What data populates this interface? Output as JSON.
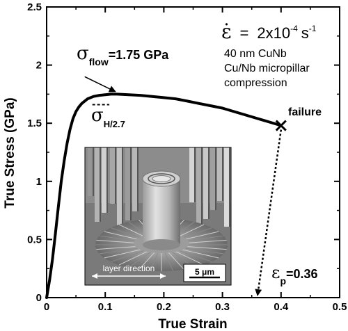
{
  "chart_data": {
    "type": "line",
    "xlabel": "True Strain",
    "ylabel": "True Stress (GPa)",
    "xlim": [
      0,
      0.5
    ],
    "ylim": [
      0,
      2.5
    ],
    "x_ticks": [
      "0",
      "0.1",
      "0.2",
      "0.3",
      "0.4",
      "0.5"
    ],
    "y_ticks": [
      "0",
      "0.5",
      "1",
      "1.5",
      "2",
      "2.5"
    ],
    "grid": false,
    "series": [
      {
        "x": [
          0,
          0.005,
          0.01,
          0.015,
          0.02,
          0.025,
          0.03,
          0.035,
          0.04,
          0.045,
          0.05,
          0.055,
          0.06,
          0.065,
          0.07,
          0.08,
          0.09,
          0.1,
          0.11,
          0.12,
          0.14,
          0.16,
          0.18,
          0.2,
          0.22,
          0.24,
          0.26,
          0.28,
          0.3,
          0.32,
          0.34,
          0.36,
          0.38,
          0.4
        ],
        "values": [
          0,
          0.15,
          0.33,
          0.55,
          0.78,
          1.0,
          1.18,
          1.33,
          1.45,
          1.54,
          1.6,
          1.64,
          1.67,
          1.69,
          1.71,
          1.73,
          1.74,
          1.745,
          1.75,
          1.75,
          1.745,
          1.74,
          1.73,
          1.72,
          1.71,
          1.69,
          1.67,
          1.65,
          1.63,
          1.6,
          1.57,
          1.54,
          1.51,
          1.48
        ]
      }
    ],
    "annotations": {
      "flow_symbol": "σ",
      "flow_sub": "flow",
      "flow_value": "=1.75 GPa",
      "flow_point": {
        "x": 0.12,
        "y": 1.75
      },
      "hardness_symbol": "σ",
      "hardness_sub": "H/2.7",
      "hardness_level": 1.66,
      "rate_symbol": "ε̇",
      "rate_eq": "=",
      "rate_base": "2x10",
      "rate_exp": "-4",
      "rate_unit": "s",
      "rate_unit_exp": "-1",
      "material_line1": "40 nm CuNb",
      "material_line2": "Cu/Nb micropillar",
      "material_line3": "compression",
      "failure_label": "failure",
      "failure_point": {
        "x": 0.4,
        "y": 1.48
      },
      "plastic_symbol": "ε",
      "plastic_sub": "p",
      "plastic_value": "=0.36",
      "plastic_strain": 0.36
    },
    "inset": {
      "layer_label": "layer direction",
      "scale_label": "5 μm"
    }
  }
}
